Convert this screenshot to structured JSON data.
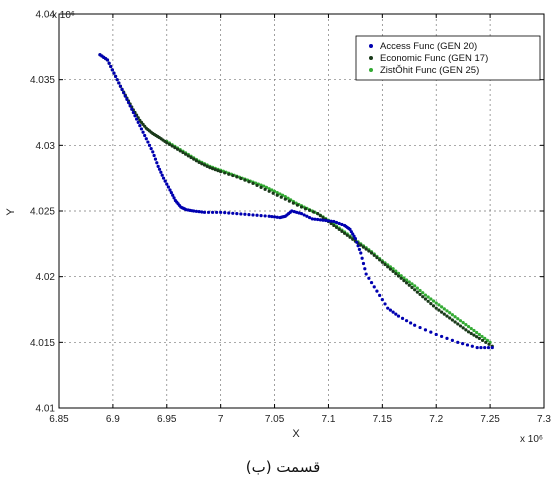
{
  "chart_data": {
    "type": "scatter",
    "xlabel": "X",
    "ylabel": "Y",
    "x_exponent": "x 10⁶",
    "y_exponent": "x 10⁶",
    "xlim": [
      6.85,
      7.3
    ],
    "ylim": [
      4.01,
      4.04
    ],
    "x_ticks": [
      "6.85",
      "6.9",
      "6.95",
      "7",
      "7.05",
      "7.1",
      "7.15",
      "7.2",
      "7.25",
      "7.3"
    ],
    "y_ticks": [
      "4.01",
      "4.015",
      "4.02",
      "4.025",
      "4.03",
      "4.035",
      "4.04"
    ],
    "grid": true,
    "legend_position": "top-right",
    "caption": "قسمت (ب)",
    "series": [
      {
        "name": "Access Func (GEN 20)",
        "color": "#0000b0",
        "x": [
          6.888,
          6.895,
          6.901,
          6.907,
          6.913,
          6.919,
          6.925,
          6.931,
          6.937,
          6.942,
          6.947,
          6.953,
          6.958,
          6.963,
          6.968,
          6.975,
          6.985,
          7.0,
          7.015,
          7.03,
          7.045,
          7.055,
          7.06,
          7.066,
          7.075,
          7.085,
          7.095,
          7.105,
          7.115,
          7.12,
          7.125,
          7.13,
          7.135,
          7.145,
          7.155,
          7.165,
          7.18,
          7.2,
          7.22,
          7.238,
          7.252
        ],
        "y": [
          4.0369,
          4.0365,
          4.0355,
          4.0345,
          4.0335,
          4.0325,
          4.0315,
          4.0305,
          4.0295,
          4.0284,
          4.0275,
          4.0266,
          4.0258,
          4.0253,
          4.0251,
          4.025,
          4.0249,
          4.0249,
          4.0248,
          4.0247,
          4.0246,
          4.0245,
          4.0246,
          4.025,
          4.0248,
          4.0244,
          4.0243,
          4.0242,
          4.0239,
          4.0236,
          4.0229,
          4.0218,
          4.0202,
          4.0189,
          4.0176,
          4.017,
          4.0163,
          4.0156,
          4.015,
          4.0146,
          4.0146
        ]
      },
      {
        "name": "Economic Func (GEN 17)",
        "color": "#1a3a1a",
        "x": [
          6.888,
          6.895,
          6.901,
          6.907,
          6.913,
          6.919,
          6.925,
          6.931,
          6.937,
          6.943,
          6.95,
          6.96,
          6.97,
          6.98,
          6.99,
          7.0,
          7.015,
          7.03,
          7.045,
          7.06,
          7.075,
          7.09,
          7.1,
          7.11,
          7.12,
          7.13,
          7.14,
          7.15,
          7.16,
          7.17,
          7.18,
          7.19,
          7.2,
          7.21,
          7.22,
          7.23,
          7.24,
          7.252
        ],
        "y": [
          4.0369,
          4.0365,
          4.0355,
          4.0345,
          4.0336,
          4.0327,
          4.0319,
          4.0313,
          4.0309,
          4.0306,
          4.0302,
          4.0297,
          4.0292,
          4.0287,
          4.0283,
          4.028,
          4.0276,
          4.0271,
          4.0265,
          4.0259,
          4.0253,
          4.0248,
          4.0242,
          4.0236,
          4.023,
          4.0224,
          4.0218,
          4.0211,
          4.0204,
          4.0197,
          4.019,
          4.0183,
          4.0176,
          4.017,
          4.0164,
          4.0158,
          4.0153,
          4.0147
        ]
      },
      {
        "name": "ZistŎhit Func (GEN 25)",
        "color": "#33aa33",
        "x": [
          6.95,
          6.96,
          6.97,
          6.98,
          6.99,
          7.0,
          7.01,
          7.02,
          7.03,
          7.04,
          7.05,
          7.06,
          7.07,
          7.08,
          7.09,
          7.1,
          7.11,
          7.12,
          7.13,
          7.14,
          7.15,
          7.16,
          7.17,
          7.18,
          7.19,
          7.2,
          7.21,
          7.22,
          7.23,
          7.24,
          7.25
        ],
        "y": [
          4.0303,
          4.0298,
          4.0293,
          4.0288,
          4.0284,
          4.0281,
          4.0278,
          4.0275,
          4.0272,
          4.0269,
          4.0265,
          4.0261,
          4.0256,
          4.0252,
          4.0248,
          4.0243,
          4.0237,
          4.0231,
          4.0225,
          4.0219,
          4.0212,
          4.0206,
          4.0199,
          4.0193,
          4.0186,
          4.018,
          4.0174,
          4.0168,
          4.0162,
          4.0156,
          4.015
        ]
      }
    ]
  }
}
